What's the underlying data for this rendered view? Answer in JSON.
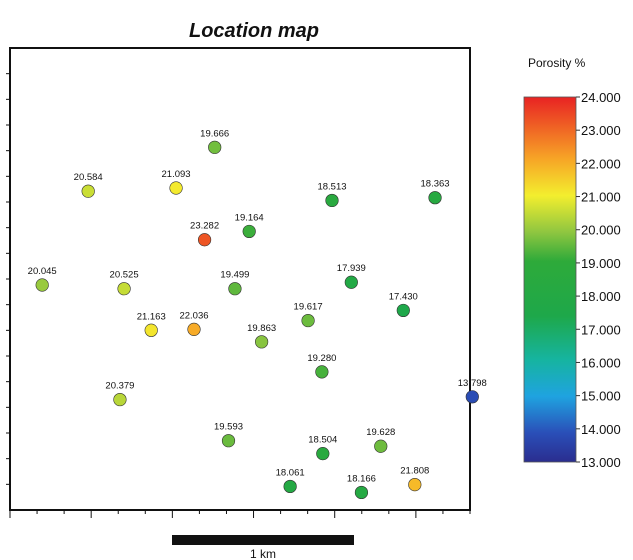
{
  "chart_data": {
    "type": "scatter",
    "title": "Location map",
    "colorbar": {
      "title": "Porosity %",
      "min": 13.0,
      "max": 24.0,
      "tick_labels": [
        "24.000",
        "23.000",
        "22.000",
        "21.000",
        "20.000",
        "19.000",
        "18.000",
        "17.000",
        "16.000",
        "15.000",
        "14.000",
        "13.000"
      ]
    },
    "scale_bar_label": "1 km",
    "points": [
      {
        "label": "19.666",
        "value": 19.666,
        "x": 0.445,
        "y": 0.785
      },
      {
        "label": "20.584",
        "value": 20.584,
        "x": 0.17,
        "y": 0.69
      },
      {
        "label": "21.093",
        "value": 21.093,
        "x": 0.361,
        "y": 0.697
      },
      {
        "label": "18.513",
        "value": 18.513,
        "x": 0.7,
        "y": 0.67
      },
      {
        "label": "18.363",
        "value": 18.363,
        "x": 0.924,
        "y": 0.676
      },
      {
        "label": "23.282",
        "value": 23.282,
        "x": 0.423,
        "y": 0.585
      },
      {
        "label": "19.164",
        "value": 19.164,
        "x": 0.52,
        "y": 0.603
      },
      {
        "label": "20.045",
        "value": 20.045,
        "x": 0.07,
        "y": 0.487
      },
      {
        "label": "20.525",
        "value": 20.525,
        "x": 0.248,
        "y": 0.479
      },
      {
        "label": "19.499",
        "value": 19.499,
        "x": 0.489,
        "y": 0.479
      },
      {
        "label": "17.939",
        "value": 17.939,
        "x": 0.742,
        "y": 0.493
      },
      {
        "label": "17.430",
        "value": 17.43,
        "x": 0.855,
        "y": 0.432
      },
      {
        "label": "21.163",
        "value": 21.163,
        "x": 0.307,
        "y": 0.389
      },
      {
        "label": "22.036",
        "value": 22.036,
        "x": 0.4,
        "y": 0.391
      },
      {
        "label": "19.617",
        "value": 19.617,
        "x": 0.648,
        "y": 0.41
      },
      {
        "label": "19.863",
        "value": 19.863,
        "x": 0.547,
        "y": 0.364
      },
      {
        "label": "19.280",
        "value": 19.28,
        "x": 0.678,
        "y": 0.299
      },
      {
        "label": "20.379",
        "value": 20.379,
        "x": 0.239,
        "y": 0.239
      },
      {
        "label": "13.798",
        "value": 13.798,
        "x": 1.005,
        "y": 0.245
      },
      {
        "label": "19.593",
        "value": 19.593,
        "x": 0.475,
        "y": 0.15
      },
      {
        "label": "18.504",
        "value": 18.504,
        "x": 0.68,
        "y": 0.122
      },
      {
        "label": "19.628",
        "value": 19.628,
        "x": 0.806,
        "y": 0.138
      },
      {
        "label": "18.061",
        "value": 18.061,
        "x": 0.609,
        "y": 0.051
      },
      {
        "label": "18.166",
        "value": 18.166,
        "x": 0.764,
        "y": 0.038
      },
      {
        "label": "21.808",
        "value": 21.808,
        "x": 0.88,
        "y": 0.055
      }
    ]
  }
}
